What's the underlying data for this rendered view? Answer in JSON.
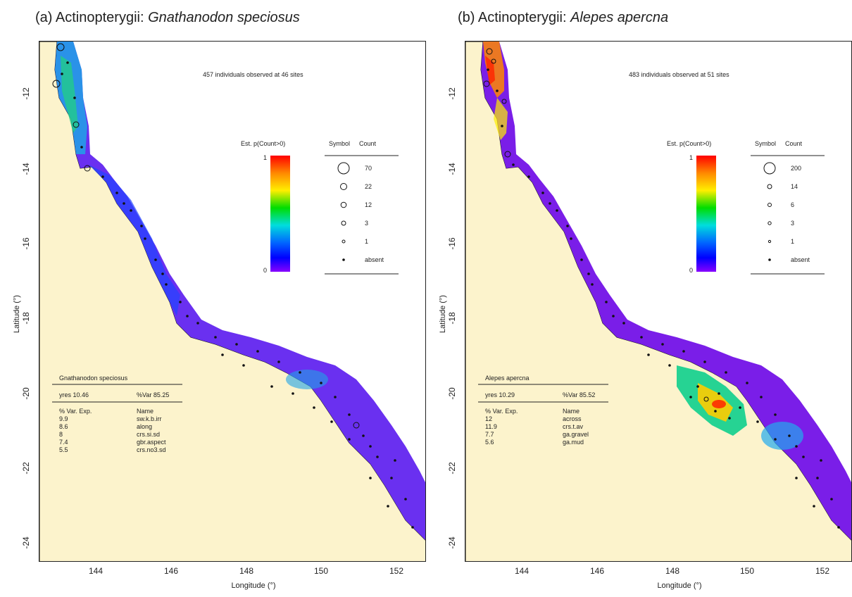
{
  "panels": [
    {
      "title_prefix": "(a) Actinopterygii: ",
      "species": "Gnathanodon speciosus",
      "note": "457 individuals observed at 46 sites",
      "colorbar_title": "Est. p(Count>0)",
      "colorbar_max": "1",
      "colorbar_min": "0",
      "symbol_header": "Symbol",
      "count_header": "Count",
      "counts": [
        "70",
        "22",
        "12",
        "3",
        "1",
        "absent"
      ],
      "stats_name": "Gnathanodon speciosus",
      "yres": "yres 10.46",
      "var": "%Var 85.25",
      "col_exp": "% Var. Exp.",
      "col_name": "Name",
      "vars": [
        {
          "exp": "9.9",
          "name": "sw.k.b.irr"
        },
        {
          "exp": "8.6",
          "name": "along"
        },
        {
          "exp": "8",
          "name": "crs.si.sd"
        },
        {
          "exp": "7.4",
          "name": "gbr.aspect"
        },
        {
          "exp": "5.5",
          "name": "crs.no3.sd"
        }
      ]
    },
    {
      "title_prefix": "(b) Actinopterygii: ",
      "species": "Alepes apercna",
      "note": "483 individuals observed at 51 sites",
      "colorbar_title": "Est. p(Count>0)",
      "colorbar_max": "1",
      "colorbar_min": "0",
      "symbol_header": "Symbol",
      "count_header": "Count",
      "counts": [
        "200",
        "14",
        "6",
        "3",
        "1",
        "absent"
      ],
      "stats_name": "Alepes apercna",
      "yres": "yres 10.29",
      "var": "%Var 85.52",
      "col_exp": "% Var. Exp.",
      "col_name": "Name",
      "vars": [
        {
          "exp": "12",
          "name": "across"
        },
        {
          "exp": "11.9",
          "name": "crs.t.av"
        },
        {
          "exp": "7.7",
          "name": "ga.gravel"
        },
        {
          "exp": "5.6",
          "name": "ga.mud"
        }
      ]
    }
  ],
  "axes": {
    "xlabel": "Longitude (°)",
    "ylabel": "Latitude (°)",
    "xticks": [
      "144",
      "146",
      "148",
      "150",
      "152"
    ],
    "yticks": [
      "-12",
      "-14",
      "-16",
      "-18",
      "-20",
      "-22",
      "-24"
    ]
  },
  "colors": {
    "land": "#fcf3cc",
    "sea": "#ffffff",
    "low_prob": "#7a1ee8",
    "colorbar": [
      "#ff0000",
      "#ff8800",
      "#ffee00",
      "#00dd00",
      "#00dddd",
      "#0066ff",
      "#0000ff",
      "#8800ff"
    ]
  }
}
